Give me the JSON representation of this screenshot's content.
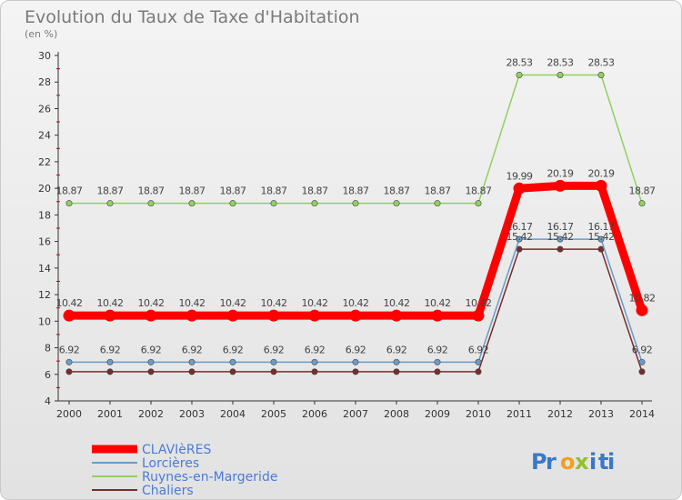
{
  "chart_data": {
    "type": "line",
    "title": "Evolution du Taux de Taxe d'Habitation",
    "subtitle": "(en %)",
    "x": [
      "2000",
      "2001",
      "2002",
      "2003",
      "2004",
      "2005",
      "2006",
      "2007",
      "2008",
      "2009",
      "2010",
      "2011",
      "2012",
      "2013",
      "2014"
    ],
    "ylim": [
      4,
      30
    ],
    "yticks": [
      4,
      6,
      8,
      10,
      12,
      14,
      16,
      18,
      20,
      22,
      24,
      26,
      28,
      30
    ],
    "grid": false,
    "legend_position": "bottom-left",
    "series": [
      {
        "name": "CLAVIèRES",
        "color": "#ff0000",
        "values": [
          10.42,
          10.42,
          10.42,
          10.42,
          10.42,
          10.42,
          10.42,
          10.42,
          10.42,
          10.42,
          10.42,
          19.99,
          20.19,
          20.19,
          10.82
        ],
        "labels": [
          "10.42",
          "10.42",
          "10.42",
          "10.42",
          "10.42",
          "10.42",
          "10.42",
          "10.42",
          "10.42",
          "10.42",
          "10.42",
          "19.99",
          "20.19",
          "20.19",
          "10.82"
        ]
      },
      {
        "name": "Lorcières",
        "color": "#6a9bc9",
        "values": [
          6.92,
          6.92,
          6.92,
          6.92,
          6.92,
          6.92,
          6.92,
          6.92,
          6.92,
          6.92,
          6.92,
          16.17,
          16.17,
          16.17,
          6.92
        ],
        "labels": [
          "6.92",
          "6.92",
          "6.92",
          "6.92",
          "6.92",
          "6.92",
          "6.92",
          "6.92",
          "6.92",
          "6.92",
          "6.92",
          "16.17",
          "16.17",
          "16.17",
          "6.92"
        ]
      },
      {
        "name": "Ruynes-en-Margeride",
        "color": "#90d060",
        "values": [
          18.87,
          18.87,
          18.87,
          18.87,
          18.87,
          18.87,
          18.87,
          18.87,
          18.87,
          18.87,
          18.87,
          28.53,
          28.53,
          28.53,
          18.87
        ],
        "labels": [
          "18.87",
          "18.87",
          "18.87",
          "18.87",
          "18.87",
          "18.87",
          "18.87",
          "18.87",
          "18.87",
          "18.87",
          "18.87",
          "28.53",
          "28.53",
          "28.53",
          "18.87"
        ]
      },
      {
        "name": "Chaliers",
        "color": "#7a2c2c",
        "values": [
          6.2,
          6.2,
          6.2,
          6.2,
          6.2,
          6.2,
          6.2,
          6.2,
          6.2,
          6.2,
          6.2,
          15.42,
          15.42,
          15.42,
          6.2
        ],
        "labels": [
          "",
          "",
          "",
          "",
          "",
          "",
          "",
          "",
          "",
          "",
          "",
          "15.42",
          "15.42",
          "15.42",
          ""
        ]
      }
    ]
  },
  "branding": {
    "logo_text": "Proxiti",
    "letters": [
      "P",
      "r",
      "o",
      "x",
      "i",
      "t",
      "i"
    ],
    "letter_colors": [
      "#3a78c8",
      "#3a78c8",
      "#f0a020",
      "#90c030",
      "#3a78c8",
      "#3a78c8",
      "#3a78c8"
    ]
  }
}
